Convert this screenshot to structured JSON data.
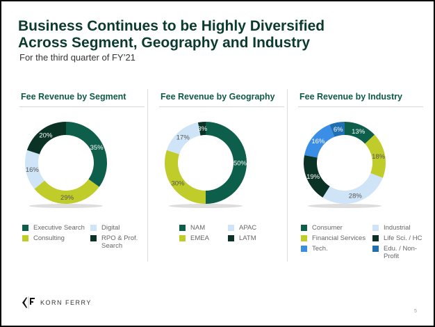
{
  "slide": {
    "title_line1": "Business Continues to be Highly Diversified",
    "title_line2": "Across Segment, Geography and Industry",
    "subtitle": "For the third quarter of FY’21",
    "logo_text": "KORN FERRY",
    "page_number": "5"
  },
  "colors": {
    "title": "#0b3b2e",
    "panel_title": "#0e5a46"
  },
  "chart_data": [
    {
      "type": "pie",
      "title": "Fee Revenue by Segment",
      "categories": [
        "Executive Search",
        "Consulting",
        "Digital",
        "RPO & Prof. Search"
      ],
      "values": [
        35,
        29,
        16,
        20
      ],
      "labels": [
        "35%",
        "29%",
        "16%",
        "20%"
      ],
      "colors": [
        "#0d5e4a",
        "#bfcc2a",
        "#cfe5f7",
        "#0a3326"
      ],
      "label_colors": [
        "#ffffff",
        "#555555",
        "#555555",
        "#ffffff"
      ],
      "legend": [
        {
          "label": "Executive Search",
          "color": "#0d5e4a"
        },
        {
          "label": "Digital",
          "color": "#cfe5f7"
        },
        {
          "label": "Consulting",
          "color": "#bfcc2a"
        },
        {
          "label": "RPO & Prof. Search",
          "color": "#0a3326"
        }
      ],
      "legend_placement": "bottom"
    },
    {
      "type": "pie",
      "title": "Fee Revenue by Geography",
      "categories": [
        "NAM",
        "EMEA",
        "APAC",
        "LATM"
      ],
      "values": [
        50,
        30,
        17,
        3
      ],
      "labels": [
        "50%",
        "30%",
        "17%",
        "3%"
      ],
      "colors": [
        "#0d5e4a",
        "#bfcc2a",
        "#cfe5f7",
        "#0a3326"
      ],
      "label_colors": [
        "#ffffff",
        "#555555",
        "#555555",
        "#ffffff"
      ],
      "legend": [
        {
          "label": "NAM",
          "color": "#0d5e4a"
        },
        {
          "label": "APAC",
          "color": "#cfe5f7"
        },
        {
          "label": "EMEA",
          "color": "#bfcc2a"
        },
        {
          "label": "LATM",
          "color": "#0a3326"
        }
      ],
      "legend_placement": "bottom"
    },
    {
      "type": "pie",
      "title": "Fee Revenue by Industry",
      "categories": [
        "Consumer",
        "Financial Services",
        "Industrial",
        "Life Sci. / HC",
        "Tech.",
        "Edu. / Non-Profit"
      ],
      "values": [
        13,
        18,
        28,
        19,
        16,
        6
      ],
      "labels": [
        "13%",
        "18%",
        "28%",
        "19%",
        "16%",
        "6%"
      ],
      "colors": [
        "#0d5e4a",
        "#bfcc2a",
        "#cfe5f7",
        "#0a3326",
        "#3a8ee6",
        "#1f6fb2"
      ],
      "label_colors": [
        "#ffffff",
        "#555555",
        "#555555",
        "#ffffff",
        "#ffffff",
        "#ffffff"
      ],
      "legend": [
        {
          "label": "Consumer",
          "color": "#0d5e4a"
        },
        {
          "label": "Industrial",
          "color": "#cfe5f7"
        },
        {
          "label": "Financial Services",
          "color": "#bfcc2a"
        },
        {
          "label": "Life Sci. / HC",
          "color": "#0a3326"
        },
        {
          "label": "Tech.",
          "color": "#3a8ee6"
        },
        {
          "label": "Edu. / Non-Profit",
          "color": "#1f6fb2"
        }
      ],
      "legend_placement": "bottom"
    }
  ]
}
